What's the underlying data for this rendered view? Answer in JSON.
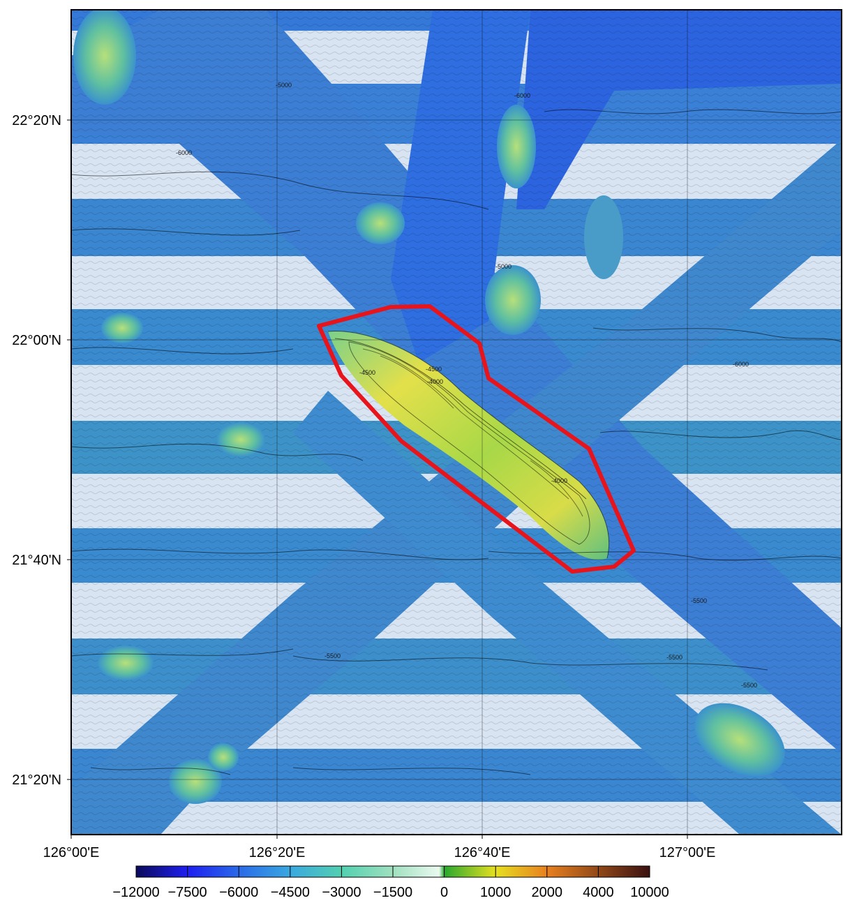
{
  "map": {
    "latitude_labels": [
      "22°20'N",
      "22°00'N",
      "21°40'N",
      "21°20'N"
    ],
    "longitude_labels": [
      "126°00'E",
      "126°20'E",
      "126°40'E",
      "127°00'E"
    ],
    "contour_labels": [
      "-5000",
      "-6000",
      "-6000",
      "-4500",
      "-4500",
      "-4000",
      "-5000",
      "-6000",
      "-5500",
      "-5500",
      "-5500",
      "-5500",
      "-4000"
    ],
    "highlight_polygon_color": "#e8141c",
    "feature": "ridge",
    "colors": {
      "deep": "#1f3fd8",
      "mid": "#3a86d0",
      "shallow": "#6fc0a0",
      "peak": "#e8e040",
      "nodata": "#d8e4f2"
    }
  },
  "colorbar": {
    "tick_labels": [
      "−12000",
      "−7500",
      "−6000",
      "−4500",
      "−3000",
      "−1500",
      "0",
      "1000",
      "2000",
      "4000",
      "10000"
    ],
    "stops": [
      "#0a0a5a",
      "#1e1ef0",
      "#2a6ae8",
      "#3aa8e0",
      "#52d0b0",
      "#a0e0c0",
      "#eafaf0",
      "#2aa830",
      "#e6e020",
      "#e88020",
      "#3a1010"
    ]
  }
}
